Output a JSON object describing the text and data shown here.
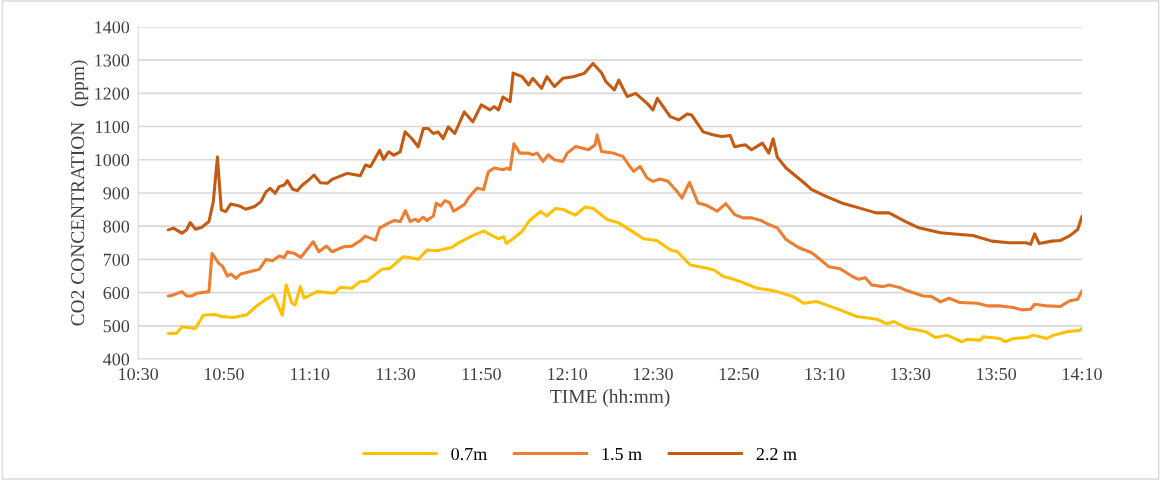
{
  "chart_data": {
    "type": "line",
    "xlabel": "TIME (hh:mm)",
    "ylabel": "CO2 CONCENTRATION   (ppm)",
    "xlim": [
      10.5,
      14.167
    ],
    "ylim": [
      400,
      1400
    ],
    "xticks": [
      {
        "value": 10.5,
        "label": "10:30"
      },
      {
        "value": 10.8333,
        "label": "10:50"
      },
      {
        "value": 11.1667,
        "label": "11:10"
      },
      {
        "value": 11.5,
        "label": "11:30"
      },
      {
        "value": 11.8333,
        "label": "11:50"
      },
      {
        "value": 12.1667,
        "label": "12:10"
      },
      {
        "value": 12.5,
        "label": "12:30"
      },
      {
        "value": 12.8333,
        "label": "12:50"
      },
      {
        "value": 13.1667,
        "label": "13:10"
      },
      {
        "value": 13.5,
        "label": "13:30"
      },
      {
        "value": 13.8333,
        "label": "13:50"
      },
      {
        "value": 14.1667,
        "label": "14:10"
      }
    ],
    "yticks": [
      400,
      500,
      600,
      700,
      800,
      900,
      1000,
      1100,
      1200,
      1300,
      1400
    ],
    "grid": "y",
    "legend": "bottom",
    "marker": "none",
    "line_style": "solid",
    "series": [
      {
        "name": "0.7m",
        "color": "#ffc000",
        "x": [
          10.617,
          10.65,
          10.67,
          10.722,
          10.753,
          10.798,
          10.825,
          10.87,
          10.922,
          10.96,
          10.993,
          11.025,
          11.06,
          11.075,
          11.097,
          11.11,
          11.13,
          11.145,
          11.195,
          11.262,
          11.285,
          11.33,
          11.362,
          11.388,
          11.447,
          11.478,
          11.53,
          11.557,
          11.588,
          11.622,
          11.66,
          11.718,
          11.745,
          11.803,
          11.842,
          11.9,
          11.92,
          11.93,
          11.952,
          11.99,
          12.017,
          12.062,
          12.088,
          12.12,
          12.152,
          12.198,
          12.237,
          12.268,
          12.322,
          12.367,
          12.412,
          12.463,
          12.515,
          12.568,
          12.595,
          12.645,
          12.71,
          12.737,
          12.775,
          12.802,
          12.84,
          12.905,
          12.955,
          12.982,
          13.045,
          13.085,
          13.137,
          13.227,
          13.292,
          13.37,
          13.408,
          13.435,
          13.487,
          13.525,
          13.563,
          13.597,
          13.642,
          13.7,
          13.72,
          13.772,
          13.783,
          13.848,
          13.868,
          13.9,
          13.953,
          13.978,
          14.03,
          14.057,
          14.108,
          14.16,
          14.167
        ],
        "values": [
          477,
          478,
          497,
          492,
          532,
          534,
          528,
          525,
          533,
          560,
          578,
          593,
          532,
          623,
          568,
          563,
          618,
          583,
          603,
          598,
          616,
          613,
          633,
          635,
          670,
          673,
          708,
          706,
          700,
          728,
          726,
          736,
          750,
          773,
          785,
          762,
          768,
          748,
          760,
          783,
          814,
          844,
          831,
          853,
          850,
          833,
          858,
          853,
          820,
          810,
          788,
          762,
          757,
          728,
          723,
          683,
          673,
          668,
          648,
          643,
          633,
          613,
          608,
          603,
          588,
          568,
          573,
          548,
          528,
          520,
          506,
          513,
          493,
          488,
          481,
          465,
          472,
          452,
          459,
          457,
          467,
          462,
          452,
          462,
          465,
          472,
          462,
          472,
          482,
          487,
          492
        ]
      },
      {
        "name": "1.5 m",
        "color": "#ed7d31",
        "x": [
          10.617,
          10.637,
          10.67,
          10.688,
          10.708,
          10.728,
          10.775,
          10.787,
          10.813,
          10.827,
          10.847,
          10.86,
          10.88,
          10.898,
          10.925,
          10.97,
          10.997,
          11.022,
          11.048,
          11.068,
          11.08,
          11.107,
          11.132,
          11.18,
          11.202,
          11.232,
          11.253,
          11.298,
          11.33,
          11.363,
          11.382,
          11.422,
          11.438,
          11.467,
          11.493,
          11.518,
          11.538,
          11.557,
          11.577,
          11.588,
          11.607,
          11.622,
          11.647,
          11.658,
          11.675,
          11.692,
          11.71,
          11.725,
          11.767,
          11.783,
          11.817,
          11.842,
          11.86,
          11.883,
          11.917,
          11.933,
          11.945,
          11.96,
          11.983,
          12.017,
          12.033,
          12.05,
          12.073,
          12.093,
          12.117,
          12.15,
          12.167,
          12.2,
          12.25,
          12.275,
          12.283,
          12.3,
          12.345,
          12.383,
          12.412,
          12.425,
          12.45,
          12.477,
          12.5,
          12.528,
          12.558,
          12.593,
          12.613,
          12.642,
          12.675,
          12.71,
          12.75,
          12.783,
          12.817,
          12.85,
          12.883,
          12.917,
          12.95,
          12.983,
          13.017,
          13.067,
          13.117,
          13.157,
          13.183,
          13.227,
          13.278,
          13.3,
          13.325,
          13.35,
          13.395,
          13.417,
          13.46,
          13.483,
          13.55,
          13.583,
          13.617,
          13.65,
          13.693,
          13.76,
          13.8,
          13.85,
          13.9,
          13.933,
          13.967,
          13.983,
          14.033,
          14.083,
          14.117,
          14.15,
          14.167
        ],
        "values": [
          590,
          593,
          603,
          590,
          590,
          598,
          603,
          718,
          688,
          680,
          650,
          656,
          643,
          656,
          661,
          670,
          700,
          696,
          710,
          706,
          723,
          718,
          706,
          753,
          723,
          740,
          723,
          738,
          740,
          756,
          770,
          758,
          794,
          807,
          817,
          814,
          847,
          814,
          821,
          814,
          827,
          817,
          831,
          869,
          861,
          877,
          871,
          845,
          865,
          885,
          915,
          910,
          963,
          975,
          970,
          975,
          970,
          1048,
          1020,
          1020,
          1015,
          1020,
          995,
          1015,
          1000,
          995,
          1020,
          1040,
          1030,
          1045,
          1075,
          1025,
          1020,
          1010,
          978,
          965,
          980,
          945,
          935,
          942,
          935,
          905,
          885,
          932,
          870,
          862,
          845,
          868,
          835,
          825,
          825,
          818,
          805,
          795,
          760,
          735,
          720,
          695,
          678,
          672,
          647,
          640,
          645,
          623,
          618,
          623,
          615,
          607,
          590,
          588,
          572,
          583,
          570,
          568,
          560,
          560,
          555,
          548,
          550,
          565,
          560,
          558,
          575,
          580,
          605
        ]
      },
      {
        "name": "2.2 m",
        "color": "#c55a11",
        "x": [
          10.617,
          10.637,
          10.67,
          10.688,
          10.702,
          10.722,
          10.748,
          10.775,
          10.792,
          10.808,
          10.823,
          10.84,
          10.86,
          10.893,
          10.918,
          10.952,
          10.977,
          10.997,
          11.013,
          11.032,
          11.048,
          11.068,
          11.08,
          11.1,
          11.118,
          11.138,
          11.163,
          11.183,
          11.208,
          11.235,
          11.253,
          11.312,
          11.363,
          11.383,
          11.402,
          11.428,
          11.438,
          11.453,
          11.473,
          11.493,
          11.518,
          11.537,
          11.563,
          11.588,
          11.608,
          11.627,
          11.647,
          11.665,
          11.685,
          11.705,
          11.73,
          11.767,
          11.8,
          11.833,
          11.867,
          11.883,
          11.9,
          11.917,
          11.945,
          11.957,
          11.992,
          12.017,
          12.033,
          12.067,
          12.088,
          12.117,
          12.15,
          12.19,
          12.233,
          12.267,
          12.3,
          12.317,
          12.35,
          12.367,
          12.4,
          12.433,
          12.477,
          12.5,
          12.517,
          12.567,
          12.6,
          12.633,
          12.65,
          12.695,
          12.733,
          12.767,
          12.8,
          12.817,
          12.858,
          12.883,
          12.925,
          12.95,
          12.967,
          12.983,
          13.017,
          13.083,
          13.117,
          13.177,
          13.233,
          13.3,
          13.367,
          13.417,
          13.483,
          13.533,
          13.617,
          13.693,
          13.743,
          13.817,
          13.883,
          13.95,
          13.967,
          13.983,
          14.0,
          14.05,
          14.083,
          14.117,
          14.15,
          14.167
        ],
        "values": [
          789,
          794,
          779,
          789,
          811,
          791,
          797,
          814,
          874,
          1008,
          849,
          844,
          867,
          861,
          851,
          859,
          874,
          904,
          914,
          899,
          919,
          924,
          937,
          911,
          907,
          924,
          939,
          954,
          931,
          929,
          941,
          959,
          952,
          984,
          979,
          1014,
          1028,
          1001,
          1024,
          1014,
          1024,
          1084,
          1064,
          1039,
          1094,
          1094,
          1079,
          1084,
          1064,
          1099,
          1079,
          1144,
          1114,
          1165,
          1150,
          1160,
          1150,
          1189,
          1175,
          1261,
          1250,
          1225,
          1245,
          1215,
          1250,
          1220,
          1245,
          1250,
          1260,
          1290,
          1262,
          1235,
          1210,
          1240,
          1190,
          1200,
          1170,
          1150,
          1185,
          1130,
          1120,
          1138,
          1135,
          1084,
          1075,
          1070,
          1073,
          1039,
          1045,
          1030,
          1050,
          1020,
          1063,
          1008,
          975,
          933,
          910,
          888,
          870,
          855,
          840,
          840,
          813,
          795,
          780,
          775,
          772,
          755,
          750,
          750,
          745,
          777,
          748,
          755,
          757,
          770,
          790,
          830
        ]
      }
    ]
  }
}
